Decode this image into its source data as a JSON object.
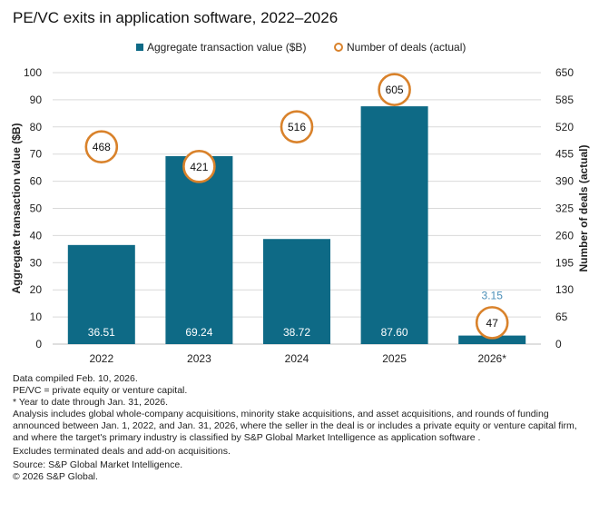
{
  "chart_data": {
    "type": "bar",
    "title": "PE/VC exits in application software, 2022–2026",
    "categories": [
      "2022",
      "2023",
      "2024",
      "2025",
      "2026*"
    ],
    "series": [
      {
        "name": "Aggregate transaction value ($B)",
        "kind": "bar",
        "axis": "left",
        "values": [
          36.51,
          69.24,
          38.72,
          87.6,
          3.15
        ],
        "labels": [
          "36.51",
          "69.24",
          "38.72",
          "87.60",
          "3.15"
        ]
      },
      {
        "name": "Number of deals (actual)",
        "kind": "circle-marker",
        "axis": "right",
        "values": [
          468,
          421,
          516,
          605,
          47
        ],
        "labels": [
          "468",
          "421",
          "516",
          "605",
          "47"
        ]
      }
    ],
    "ylabel": "Aggregate transaction value ($B)",
    "y2label": "Number of deals (actual)",
    "ylim": [
      0,
      100
    ],
    "y2lim": [
      0,
      650
    ],
    "yticks": [
      "0",
      "10",
      "20",
      "30",
      "40",
      "50",
      "60",
      "70",
      "80",
      "90",
      "100"
    ],
    "y2ticks": [
      "0",
      "65",
      "130",
      "195",
      "260",
      "325",
      "390",
      "455",
      "520",
      "585",
      "650"
    ],
    "grid": true,
    "legend_position": "top",
    "colors": {
      "bar": "#0e6a86",
      "marker": "#d9822b",
      "small_label": "#4b8fb8",
      "grid": "#d9d9d9"
    }
  },
  "notes": [
    "Data compiled Feb. 10, 2026.",
    "PE/VC = private equity or venture capital.",
    "* Year to date through Jan. 31, 2026.",
    "Analysis includes global whole-company acquisitions, minority stake acquisitions, and asset acquisitions, and rounds of funding announced between Jan. 1, 2022, and Jan. 31, 2026, where the seller in the deal is or includes a private equity or venture capital firm, and where the target's primary industry is classified by S&P Global Market Intelligence as application software .",
    "Excludes terminated deals and add-on acquisitions.",
    "Source: S&P Global Market Intelligence.",
    "© 2026 S&P Global."
  ]
}
